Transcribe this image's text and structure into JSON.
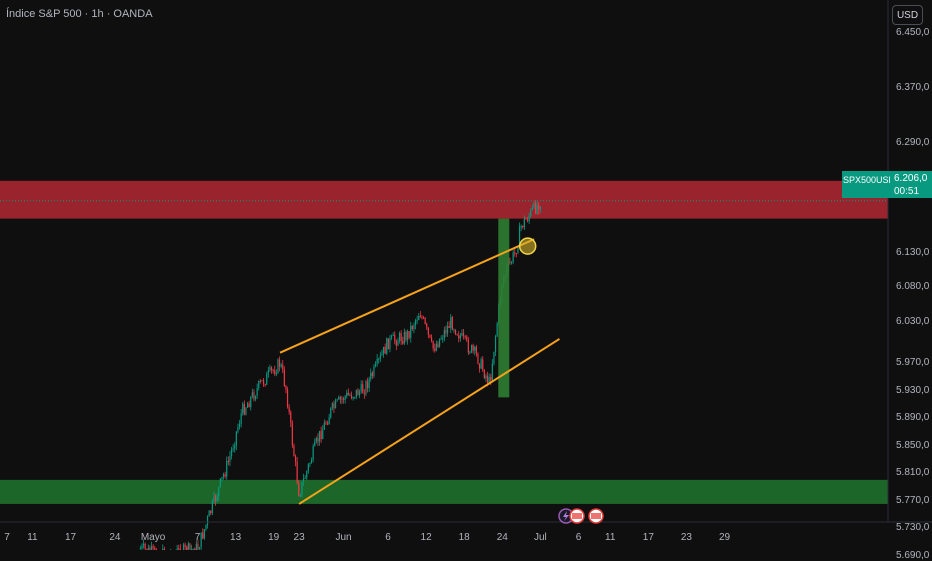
{
  "header": {
    "title": "Índice S&P 500 · 1h · OANDA",
    "currency": "USD"
  },
  "price_tag": {
    "symbol": "SPX500USD",
    "price": "6.206,0",
    "countdown": "00:51"
  },
  "colors": {
    "background": "#0f0f0f",
    "up": "#089981",
    "down": "#f23645",
    "resistance": "#b22833",
    "support": "#1f6b2b",
    "channel": "#f7a21b",
    "impulse": "#2e7d32"
  },
  "chart_data": {
    "type": "candlestick",
    "title": "Índice S&P 500 · 1h · OANDA",
    "y_tick_labels": [
      "6.450,0",
      "6.370,0",
      "6.290,0",
      "6.206,0",
      "6.130,0",
      "6.080,0",
      "6.030,0",
      "5.970,0",
      "5.930,0",
      "5.890,0",
      "5.850,0",
      "5.810,0",
      "5.770,0",
      "5.730,0",
      "5.690,0"
    ],
    "x_tick_labels": [
      "7",
      "11",
      "17",
      "24",
      "Mayo",
      "7",
      "13",
      "19",
      "23",
      "Jun",
      "6",
      "12",
      "18",
      "24",
      "Jul",
      "6",
      "11",
      "17",
      "23",
      "29"
    ],
    "last_price": 6206.0,
    "series": [
      {
        "name": "SPX500USD",
        "path": [
          {
            "date": "Apr 28",
            "price": 5700
          },
          {
            "date": "May 1",
            "price": 5690
          },
          {
            "date": "May 7",
            "price": 5700
          },
          {
            "date": "May 12",
            "price": 5830
          },
          {
            "date": "May 14",
            "price": 5900
          },
          {
            "date": "May 17",
            "price": 5940
          },
          {
            "date": "May 20",
            "price": 5970
          },
          {
            "date": "May 21",
            "price": 5930
          },
          {
            "date": "May 22",
            "price": 5850
          },
          {
            "date": "May 23",
            "price": 5780
          },
          {
            "date": "May 26",
            "price": 5860
          },
          {
            "date": "May 28",
            "price": 5900
          },
          {
            "date": "May 30",
            "price": 5920
          },
          {
            "date": "Jun 2",
            "price": 5930
          },
          {
            "date": "Jun 4",
            "price": 5960
          },
          {
            "date": "Jun 6",
            "price": 6000
          },
          {
            "date": "Jun 9",
            "price": 6010
          },
          {
            "date": "Jun 11",
            "price": 6045
          },
          {
            "date": "Jun 13",
            "price": 5990
          },
          {
            "date": "Jun 16",
            "price": 6030
          },
          {
            "date": "Jun 18",
            "price": 6000
          },
          {
            "date": "Jun 20",
            "price": 5980
          },
          {
            "date": "Jun 22",
            "price": 5940
          },
          {
            "date": "Jun 24",
            "price": 6090
          },
          {
            "date": "Jun 26",
            "price": 6130
          },
          {
            "date": "Jun 27",
            "price": 6170
          },
          {
            "date": "Jun 30",
            "price": 6206
          }
        ]
      }
    ],
    "drawings": {
      "resistance_zone": [
        6180,
        6235
      ],
      "support_zone": [
        5765,
        5800
      ],
      "channel_upper": [
        {
          "date": "May 20",
          "price": 5985
        },
        {
          "date": "Jun 29",
          "price": 6150
        }
      ],
      "channel_lower": [
        {
          "date": "May 23",
          "price": 5765
        },
        {
          "date": "Jul 3",
          "price": 6005
        }
      ],
      "impulse_bar": {
        "date": "Jun 24",
        "from": 5920,
        "to": 6180
      },
      "breakout_marker": {
        "date": "Jun 28",
        "price": 6140
      }
    }
  }
}
